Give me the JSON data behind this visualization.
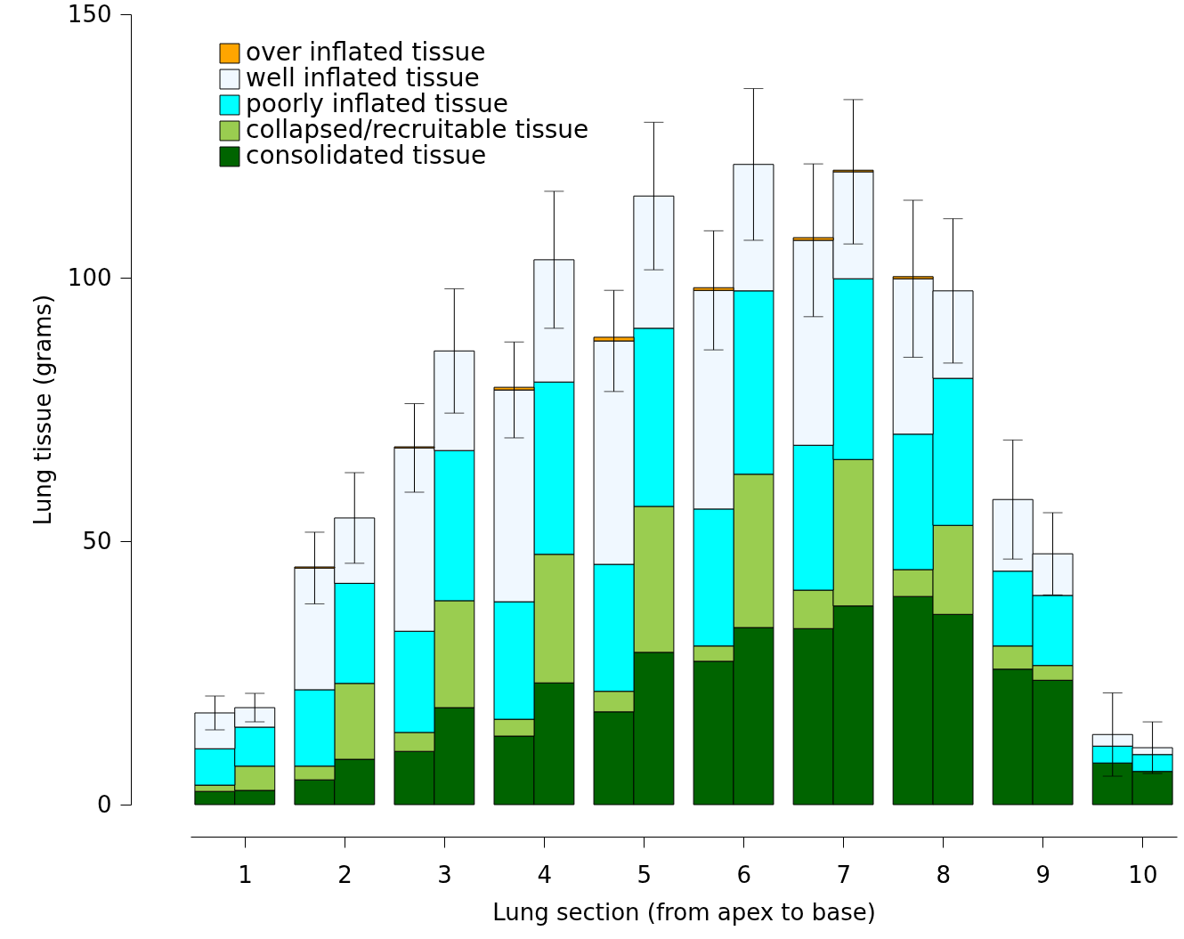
{
  "chart_data": {
    "type": "bar",
    "stacked": true,
    "xlabel": "Lung section (from apex to base)",
    "ylabel": "Lung tissue (grams)",
    "x": [
      0.7,
      1.1,
      1.7,
      2.1,
      2.7,
      3.1,
      3.7,
      4.1,
      4.7,
      5.1,
      5.7,
      6.1,
      6.7,
      7.1,
      7.7,
      8.1,
      8.7,
      9.1,
      9.7,
      10.1
    ],
    "xlim": [
      0.5,
      10.3
    ],
    "xticks": [
      1,
      2,
      3,
      4,
      5,
      6,
      7,
      8,
      9,
      10
    ],
    "ylim": [
      0,
      150
    ],
    "yticks": [
      0,
      50,
      100,
      150
    ],
    "legend": "top left",
    "series": [
      {
        "name": "consolidated tissue",
        "color": "#006400",
        "values": [
          2.5,
          2.7,
          4.7,
          8.6,
          10.1,
          18.4,
          13,
          23.1,
          17.6,
          28.9,
          27.2,
          33.6,
          33.4,
          37.7,
          39.5,
          36.1,
          25.7,
          23.6,
          7.9,
          6.3
        ]
      },
      {
        "name": "collapsed/recruitable tissue",
        "color": "#9acd50",
        "values": [
          1.2,
          4.6,
          2.6,
          14.4,
          3.6,
          20.3,
          3.2,
          24.4,
          3.9,
          27.7,
          2.9,
          29.1,
          7.3,
          27.8,
          5.1,
          16.9,
          4.4,
          2.8,
          null,
          null
        ]
      },
      {
        "name": "poorly inflated tissue",
        "color": "#00ffff",
        "values": [
          6.9,
          7.4,
          14.5,
          19,
          19.2,
          28.5,
          22.3,
          32.7,
          24.1,
          33.8,
          26,
          34.8,
          27.5,
          34.3,
          25.7,
          27.9,
          14.2,
          13.3,
          3.2,
          3.2
        ]
      },
      {
        "name": "well inflated tissue",
        "color": "#f0f8ff",
        "values": [
          6.8,
          3.7,
          23.1,
          12.4,
          34.8,
          18.9,
          40.2,
          23.2,
          42.4,
          25.1,
          41.5,
          24,
          38.9,
          20.3,
          29.5,
          16.6,
          13.6,
          7.9,
          2.2,
          1.3
        ],
        "errors": [
          3.2,
          2.7,
          6.8,
          8.6,
          8.4,
          11.8,
          9.1,
          13,
          9.6,
          14,
          11.3,
          14.4,
          14.5,
          13.7,
          14.9,
          13.7,
          11.3,
          7.8,
          7.9,
          4.9
        ]
      },
      {
        "name": "over inflated tissue",
        "color": "#ffa500",
        "values": [
          null,
          null,
          0.2,
          null,
          0.2,
          null,
          0.5,
          null,
          0.7,
          null,
          0.5,
          null,
          0.5,
          0.3,
          0.4,
          null,
          null,
          null,
          null,
          null
        ]
      }
    ]
  }
}
